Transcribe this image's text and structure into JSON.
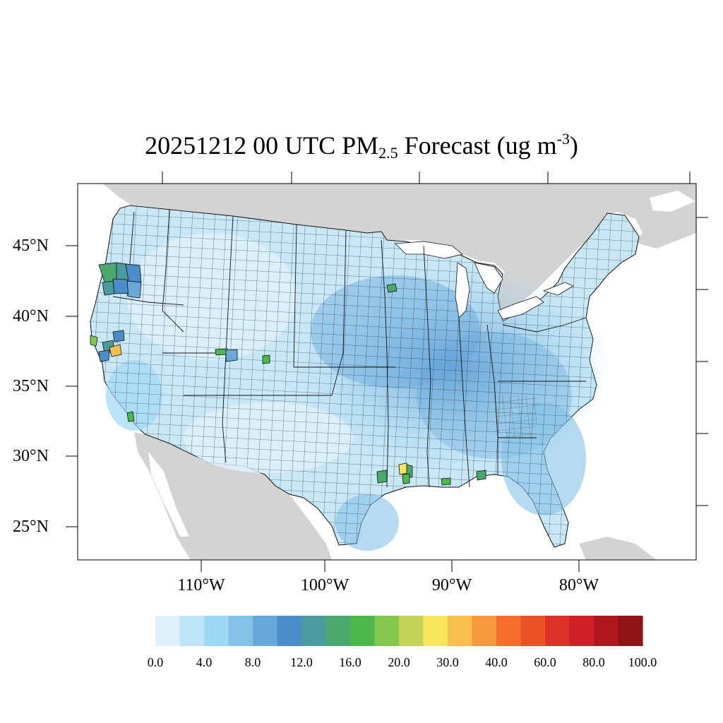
{
  "title": {
    "prefix": "20251212 00 UTC PM",
    "subscript": "2.5",
    "middle": " Forecast (ug m",
    "superscript": "-3",
    "suffix": ")"
  },
  "axes": {
    "latitude_labels": [
      "45°N",
      "40°N",
      "35°N",
      "30°N",
      "25°N"
    ],
    "longitude_labels": [
      "110°W",
      "100°W",
      "90°W",
      "80°W"
    ]
  },
  "colorbar": {
    "colors": [
      "#dff1fb",
      "#bfe6f8",
      "#9ed8f5",
      "#84c2e8",
      "#68a8db",
      "#4b8dc8",
      "#4b9b9e",
      "#4aa86e",
      "#4cb94e",
      "#85c64f",
      "#c3d356",
      "#f7e65b",
      "#f7c04c",
      "#f79a3f",
      "#f56e2c",
      "#ea5127",
      "#dc3328",
      "#cf1e27",
      "#b0181f",
      "#8f1418"
    ],
    "labels": [
      "0.0",
      "4.0",
      "8.0",
      "12.0",
      "16.0",
      "20.0",
      "30.0",
      "40.0",
      "60.0",
      "80.0",
      "100.0"
    ]
  },
  "map": {
    "land_color": "#d3d3d3",
    "water_color": "#ffffff",
    "region_fill_colors": {
      "light": "#dff1fb",
      "low": "#bfe6f8",
      "medium": "#9ed8f5",
      "moderate": "#84c2e8",
      "higher": "#68a8db",
      "teal": "#4b9b9e",
      "green": "#4aa86e",
      "bright-green": "#4cb94e",
      "yellow": "#f7e65b",
      "orange": "#f7c04c"
    }
  }
}
